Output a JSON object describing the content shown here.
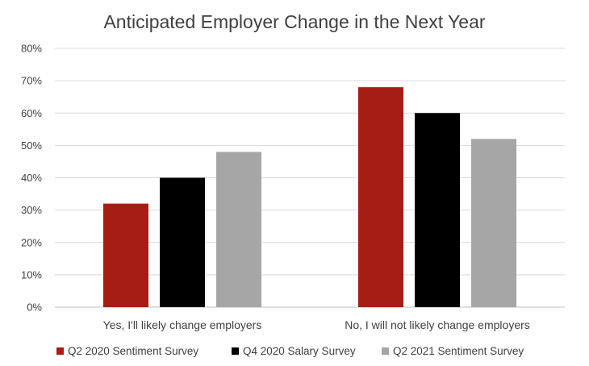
{
  "chart_data": {
    "type": "bar",
    "title": "Anticipated Employer Change in the Next Year",
    "xlabel": "",
    "ylabel": "",
    "categories": [
      "Yes, I'll likely change employers",
      "No, I will not likely change employers"
    ],
    "series": [
      {
        "name": "Q2 2020 Sentiment Survey",
        "values": [
          32,
          68
        ],
        "color": "#A61D16"
      },
      {
        "name": "Q4 2020 Salary Survey",
        "values": [
          40,
          60
        ],
        "color": "#000000"
      },
      {
        "name": "Q2 2021 Sentiment Survey",
        "values": [
          48,
          52
        ],
        "color": "#A6A6A6"
      }
    ],
    "ylim": [
      0,
      80
    ],
    "yticks": [
      0,
      10,
      20,
      30,
      40,
      50,
      60,
      70,
      80
    ],
    "ytick_labels": [
      "0%",
      "10%",
      "20%",
      "30%",
      "40%",
      "50%",
      "60%",
      "70%",
      "80%"
    ],
    "grid": true,
    "legend_position": "bottom"
  }
}
